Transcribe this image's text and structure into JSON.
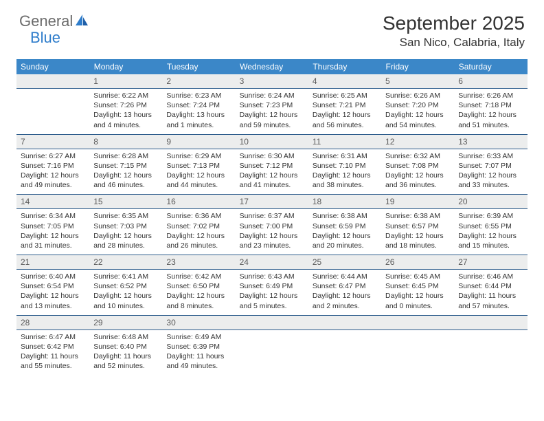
{
  "brand": {
    "word1": "General",
    "word2": "Blue"
  },
  "title": "September 2025",
  "location": "San Nico, Calabria, Italy",
  "colors": {
    "header_bg": "#3b87c8",
    "header_text": "#ffffff",
    "dayrow_bg": "#eceded",
    "dayrow_text": "#5a5a5a",
    "rule": "#2a5a8a",
    "brand_gray": "#6b6b6b",
    "brand_blue": "#2f7dcb",
    "body_text": "#333333"
  },
  "fonts": {
    "title_size_pt": 21,
    "location_size_pt": 13,
    "header_size_pt": 9,
    "cell_size_pt": 8
  },
  "weekdays": [
    "Sunday",
    "Monday",
    "Tuesday",
    "Wednesday",
    "Thursday",
    "Friday",
    "Saturday"
  ],
  "weeks": [
    [
      {
        "n": "",
        "sunrise": "",
        "sunset": "",
        "daylight1": "",
        "daylight2": ""
      },
      {
        "n": "1",
        "sunrise": "Sunrise: 6:22 AM",
        "sunset": "Sunset: 7:26 PM",
        "daylight1": "Daylight: 13 hours",
        "daylight2": "and 4 minutes."
      },
      {
        "n": "2",
        "sunrise": "Sunrise: 6:23 AM",
        "sunset": "Sunset: 7:24 PM",
        "daylight1": "Daylight: 13 hours",
        "daylight2": "and 1 minutes."
      },
      {
        "n": "3",
        "sunrise": "Sunrise: 6:24 AM",
        "sunset": "Sunset: 7:23 PM",
        "daylight1": "Daylight: 12 hours",
        "daylight2": "and 59 minutes."
      },
      {
        "n": "4",
        "sunrise": "Sunrise: 6:25 AM",
        "sunset": "Sunset: 7:21 PM",
        "daylight1": "Daylight: 12 hours",
        "daylight2": "and 56 minutes."
      },
      {
        "n": "5",
        "sunrise": "Sunrise: 6:26 AM",
        "sunset": "Sunset: 7:20 PM",
        "daylight1": "Daylight: 12 hours",
        "daylight2": "and 54 minutes."
      },
      {
        "n": "6",
        "sunrise": "Sunrise: 6:26 AM",
        "sunset": "Sunset: 7:18 PM",
        "daylight1": "Daylight: 12 hours",
        "daylight2": "and 51 minutes."
      }
    ],
    [
      {
        "n": "7",
        "sunrise": "Sunrise: 6:27 AM",
        "sunset": "Sunset: 7:16 PM",
        "daylight1": "Daylight: 12 hours",
        "daylight2": "and 49 minutes."
      },
      {
        "n": "8",
        "sunrise": "Sunrise: 6:28 AM",
        "sunset": "Sunset: 7:15 PM",
        "daylight1": "Daylight: 12 hours",
        "daylight2": "and 46 minutes."
      },
      {
        "n": "9",
        "sunrise": "Sunrise: 6:29 AM",
        "sunset": "Sunset: 7:13 PM",
        "daylight1": "Daylight: 12 hours",
        "daylight2": "and 44 minutes."
      },
      {
        "n": "10",
        "sunrise": "Sunrise: 6:30 AM",
        "sunset": "Sunset: 7:12 PM",
        "daylight1": "Daylight: 12 hours",
        "daylight2": "and 41 minutes."
      },
      {
        "n": "11",
        "sunrise": "Sunrise: 6:31 AM",
        "sunset": "Sunset: 7:10 PM",
        "daylight1": "Daylight: 12 hours",
        "daylight2": "and 38 minutes."
      },
      {
        "n": "12",
        "sunrise": "Sunrise: 6:32 AM",
        "sunset": "Sunset: 7:08 PM",
        "daylight1": "Daylight: 12 hours",
        "daylight2": "and 36 minutes."
      },
      {
        "n": "13",
        "sunrise": "Sunrise: 6:33 AM",
        "sunset": "Sunset: 7:07 PM",
        "daylight1": "Daylight: 12 hours",
        "daylight2": "and 33 minutes."
      }
    ],
    [
      {
        "n": "14",
        "sunrise": "Sunrise: 6:34 AM",
        "sunset": "Sunset: 7:05 PM",
        "daylight1": "Daylight: 12 hours",
        "daylight2": "and 31 minutes."
      },
      {
        "n": "15",
        "sunrise": "Sunrise: 6:35 AM",
        "sunset": "Sunset: 7:03 PM",
        "daylight1": "Daylight: 12 hours",
        "daylight2": "and 28 minutes."
      },
      {
        "n": "16",
        "sunrise": "Sunrise: 6:36 AM",
        "sunset": "Sunset: 7:02 PM",
        "daylight1": "Daylight: 12 hours",
        "daylight2": "and 26 minutes."
      },
      {
        "n": "17",
        "sunrise": "Sunrise: 6:37 AM",
        "sunset": "Sunset: 7:00 PM",
        "daylight1": "Daylight: 12 hours",
        "daylight2": "and 23 minutes."
      },
      {
        "n": "18",
        "sunrise": "Sunrise: 6:38 AM",
        "sunset": "Sunset: 6:59 PM",
        "daylight1": "Daylight: 12 hours",
        "daylight2": "and 20 minutes."
      },
      {
        "n": "19",
        "sunrise": "Sunrise: 6:38 AM",
        "sunset": "Sunset: 6:57 PM",
        "daylight1": "Daylight: 12 hours",
        "daylight2": "and 18 minutes."
      },
      {
        "n": "20",
        "sunrise": "Sunrise: 6:39 AM",
        "sunset": "Sunset: 6:55 PM",
        "daylight1": "Daylight: 12 hours",
        "daylight2": "and 15 minutes."
      }
    ],
    [
      {
        "n": "21",
        "sunrise": "Sunrise: 6:40 AM",
        "sunset": "Sunset: 6:54 PM",
        "daylight1": "Daylight: 12 hours",
        "daylight2": "and 13 minutes."
      },
      {
        "n": "22",
        "sunrise": "Sunrise: 6:41 AM",
        "sunset": "Sunset: 6:52 PM",
        "daylight1": "Daylight: 12 hours",
        "daylight2": "and 10 minutes."
      },
      {
        "n": "23",
        "sunrise": "Sunrise: 6:42 AM",
        "sunset": "Sunset: 6:50 PM",
        "daylight1": "Daylight: 12 hours",
        "daylight2": "and 8 minutes."
      },
      {
        "n": "24",
        "sunrise": "Sunrise: 6:43 AM",
        "sunset": "Sunset: 6:49 PM",
        "daylight1": "Daylight: 12 hours",
        "daylight2": "and 5 minutes."
      },
      {
        "n": "25",
        "sunrise": "Sunrise: 6:44 AM",
        "sunset": "Sunset: 6:47 PM",
        "daylight1": "Daylight: 12 hours",
        "daylight2": "and 2 minutes."
      },
      {
        "n": "26",
        "sunrise": "Sunrise: 6:45 AM",
        "sunset": "Sunset: 6:45 PM",
        "daylight1": "Daylight: 12 hours",
        "daylight2": "and 0 minutes."
      },
      {
        "n": "27",
        "sunrise": "Sunrise: 6:46 AM",
        "sunset": "Sunset: 6:44 PM",
        "daylight1": "Daylight: 11 hours",
        "daylight2": "and 57 minutes."
      }
    ],
    [
      {
        "n": "28",
        "sunrise": "Sunrise: 6:47 AM",
        "sunset": "Sunset: 6:42 PM",
        "daylight1": "Daylight: 11 hours",
        "daylight2": "and 55 minutes."
      },
      {
        "n": "29",
        "sunrise": "Sunrise: 6:48 AM",
        "sunset": "Sunset: 6:40 PM",
        "daylight1": "Daylight: 11 hours",
        "daylight2": "and 52 minutes."
      },
      {
        "n": "30",
        "sunrise": "Sunrise: 6:49 AM",
        "sunset": "Sunset: 6:39 PM",
        "daylight1": "Daylight: 11 hours",
        "daylight2": "and 49 minutes."
      },
      {
        "n": "",
        "sunrise": "",
        "sunset": "",
        "daylight1": "",
        "daylight2": ""
      },
      {
        "n": "",
        "sunrise": "",
        "sunset": "",
        "daylight1": "",
        "daylight2": ""
      },
      {
        "n": "",
        "sunrise": "",
        "sunset": "",
        "daylight1": "",
        "daylight2": ""
      },
      {
        "n": "",
        "sunrise": "",
        "sunset": "",
        "daylight1": "",
        "daylight2": ""
      }
    ]
  ]
}
